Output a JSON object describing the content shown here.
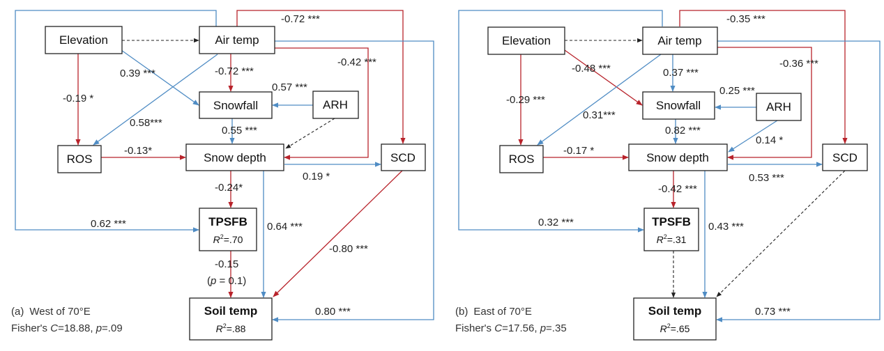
{
  "panels": [
    {
      "caption": {
        "letter": "(a)",
        "region": "West of 70°E",
        "fisher_prefix": "Fisher's ",
        "c_symbol": "C",
        "c_value": "=18.88, ",
        "p_symbol": "p",
        "p_value": "=.09"
      },
      "nodes": {
        "elevation": "Elevation",
        "air_temp": "Air temp",
        "snowfall": "Snowfall",
        "arh": "ARH",
        "ros": "ROS",
        "snow_depth": "Snow depth",
        "scd": "SCD",
        "tpsfb": "TPSFB",
        "soil_temp": "Soil temp"
      },
      "tpsfb_r2": {
        "symbol": "R",
        "exp": "2",
        "value": "=.70"
      },
      "soil_r2": {
        "symbol": "R",
        "exp": "2",
        "value": "=.88"
      },
      "edges": {
        "air_scd": "-0.72 ***",
        "air_snowdepth": "-0.42 ***",
        "elev_snowfall": "0.39 ***",
        "air_snowfall": "-0.72 ***",
        "arh_snowfall": "0.57 ***",
        "elev_ros": "-0.19 *",
        "air_ros": "0.58***",
        "snowfall_snowdepth": "0.55 ***",
        "ros_snowdepth": "-0.13*",
        "snowdepth_scd": "0.19 *",
        "snowdepth_tpsfb": "-0.24*",
        "air_tpsfb": "0.62 ***",
        "snowdepth_soil": "0.64 ***",
        "scd_soil": "-0.80 ***",
        "tpsfb_soil": "-0.15",
        "tpsfb_soil_p": {
          "open": "(",
          "symbol": "p",
          "rest": " = 0.1)"
        },
        "air_soil": "0.80 ***"
      }
    },
    {
      "caption": {
        "letter": "(b)",
        "region": "East of 70°E",
        "fisher_prefix": "Fisher's ",
        "c_symbol": "C",
        "c_value": "=17.56, ",
        "p_symbol": "p",
        "p_value": "=.35"
      },
      "nodes": {
        "elevation": "Elevation",
        "air_temp": "Air temp",
        "snowfall": "Snowfall",
        "arh": "ARH",
        "ros": "ROS",
        "snow_depth": "Snow depth",
        "scd": "SCD",
        "tpsfb": "TPSFB",
        "soil_temp": "Soil temp"
      },
      "tpsfb_r2": {
        "symbol": "R",
        "exp": "2",
        "value": "=.31"
      },
      "soil_r2": {
        "symbol": "R",
        "exp": "2",
        "value": "=.65"
      },
      "edges": {
        "air_scd": "-0.35 ***",
        "air_snowdepth": "-0.36 ***",
        "elev_snowfall": "-0.48 ***",
        "air_snowfall": "0.37 ***",
        "arh_snowfall": "0.25 ***",
        "elev_ros": "-0.29 ***",
        "air_ros": "0.31***",
        "snowfall_snowdepth": "0.82 ***",
        "arh_snowdepth": "0.14 *",
        "ros_snowdepth": "-0.17 *",
        "snowdepth_scd": "0.53 ***",
        "snowdepth_tpsfb": "-0.42 ***",
        "air_tpsfb": "0.32 ***",
        "snowdepth_soil": "0.43 ***",
        "air_soil": "0.73 ***"
      }
    }
  ],
  "colors": {
    "negative": "#b8232b",
    "positive": "#4f8cc4",
    "non_significant": "#222222"
  }
}
